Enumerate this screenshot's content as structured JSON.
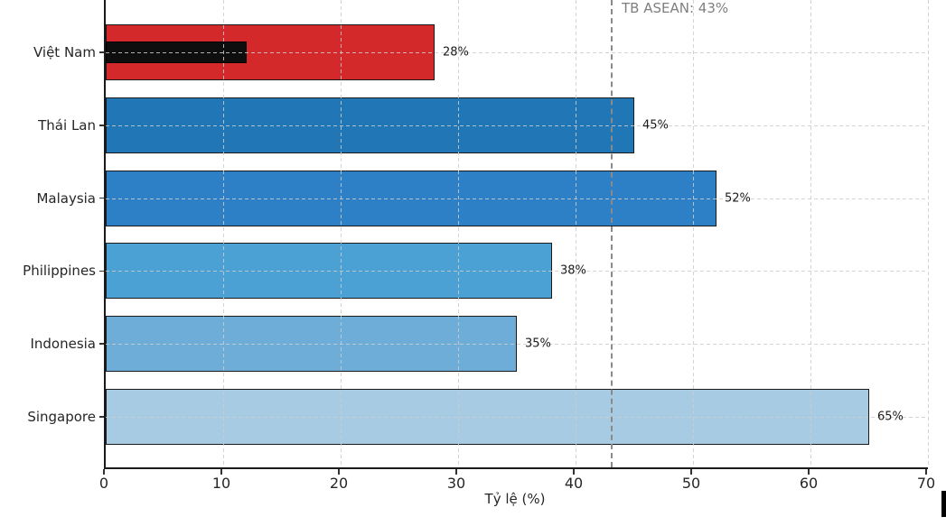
{
  "chart_data": {
    "type": "bar",
    "orientation": "horizontal",
    "title": "",
    "xlabel": "Tỷ lệ (%)",
    "ylabel": "",
    "xlim": [
      0,
      70
    ],
    "xticks": [
      0,
      10,
      20,
      30,
      40,
      50,
      60,
      70
    ],
    "grid": "dashed gridlines on both axes",
    "legend": "none",
    "categories": [
      "Việt Nam",
      "Thái Lan",
      "Malaysia",
      "Philippines",
      "Indonesia",
      "Singapore"
    ],
    "values": [
      28,
      45,
      52,
      38,
      35,
      65
    ],
    "bars": [
      {
        "category": "Việt Nam",
        "value": 28,
        "value_label": "28%",
        "color": "#d3292b"
      },
      {
        "category": "Thái Lan",
        "value": 45,
        "value_label": "45%",
        "color": "#2176b5"
      },
      {
        "category": "Malaysia",
        "value": 52,
        "value_label": "52%",
        "color": "#2e80c6"
      },
      {
        "category": "Philippines",
        "value": 38,
        "value_label": "38%",
        "color": "#4ba1d3"
      },
      {
        "category": "Indonesia",
        "value": 35,
        "value_label": "35%",
        "color": "#6dadd8"
      },
      {
        "category": "Singapore",
        "value": 65,
        "value_label": "65%",
        "color": "#a6cbe2"
      }
    ],
    "inner_bar": {
      "category": "Việt Nam",
      "value": 12,
      "color": "#0e0e0e"
    },
    "reference_line": {
      "value": 43,
      "label": "TB ASEAN: 43%",
      "style": "dashed",
      "color": "#8a8a8a"
    }
  },
  "colors": {
    "background": "#ffffff",
    "bar_border": "#1a1a1a",
    "gridline": "#cdcdcd",
    "axis": "#1a1a1a",
    "tick_text": "#262626",
    "annotation_text": "#7f7f7f",
    "value_text": "#1a1a1a"
  }
}
